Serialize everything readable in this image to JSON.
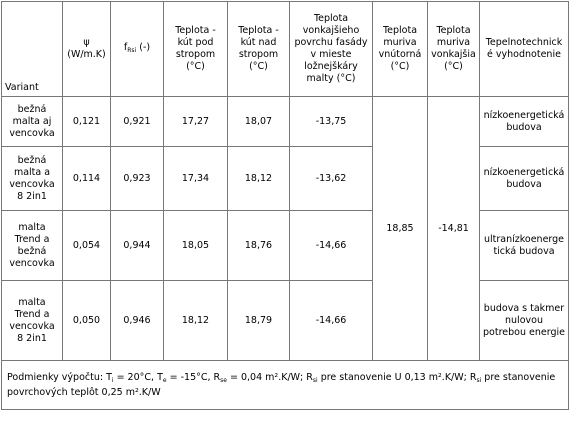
{
  "table": {
    "header": [
      [
        "Variant"
      ],
      [
        "ψ (W/m.K)"
      ],
      [
        "f",
        "Rsi",
        " (-)"
      ],
      [
        "Teplota - kút pod stropom (°C)"
      ],
      [
        "Teplota - kút nad stropom (°C)"
      ],
      [
        "Teplota vonkajšieho povrchu fasády v mieste ložnejškáry malty (°C)"
      ],
      [
        "Teplota muriva vnútorná (°C)"
      ],
      [
        "Teplota muriva vonkajšia (°C)"
      ],
      [
        "Tepelnotechnické vyhodnotenie"
      ]
    ],
    "rows": [
      [
        "bežná malta aj vencovka",
        "0,121",
        "0,921",
        "17,27",
        "18,07",
        "-13,75",
        "nízkoenergetická budova"
      ],
      [
        "bežná malta a vencovka 8 2in1",
        "0,114",
        "0,923",
        "17,34",
        "18,12",
        "-13,62",
        "nízkoenergetická budova"
      ],
      [
        "malta Trend a bežná vencovka",
        "0,054",
        "0,944",
        "18,05",
        "18,76",
        "-14,66",
        "ultranízkoenergetická budova"
      ],
      [
        "malta Trend a vencovka 8 2in1",
        "0,050",
        "0,946",
        "18,12",
        "18,79",
        "-14,66",
        "budova s takmer nulovou potrebou energie"
      ]
    ],
    "merged": [
      "18,85",
      "-14,81"
    ],
    "footer": [
      "Podmienky výpočtu: T",
      "i",
      " = 20°C, T",
      "e",
      " = -15°C, R",
      "se",
      " = 0,04 m².K/W; R",
      "si",
      " pre stanovenie U 0,13 m².K/W; R",
      "si",
      " pre stanovenie povrchových teplôt 0,25 m².K/W"
    ]
  }
}
